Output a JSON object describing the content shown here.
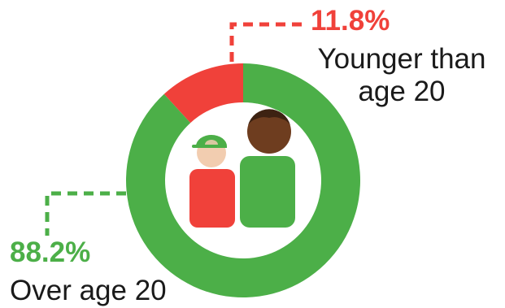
{
  "colors": {
    "younger": "#f0413a",
    "older": "#4caf48",
    "skin_light": "#f2cdb0",
    "skin_dark": "#6e3d1f",
    "background": "#ffffff"
  },
  "chart_data": {
    "type": "pie",
    "title": "",
    "categories": [
      "Younger than age 20",
      "Over age 20"
    ],
    "values": [
      11.8,
      88.2
    ],
    "value_labels": [
      "11.8%",
      "88.2%"
    ],
    "series": [
      {
        "name": "Younger than age 20",
        "value": 11.8,
        "label": "11.8%",
        "color": "#f0413a"
      },
      {
        "name": "Over age 20",
        "value": 88.2,
        "label": "88.2%",
        "color": "#4caf48"
      }
    ],
    "legend": "none"
  },
  "labels": {
    "younger_pct": "11.8%",
    "younger_line1": "Younger than",
    "younger_line2": "age 20",
    "older_pct": "88.2%",
    "older_text": "Over age 20"
  },
  "icons": [
    "child-icon",
    "adult-icon"
  ]
}
